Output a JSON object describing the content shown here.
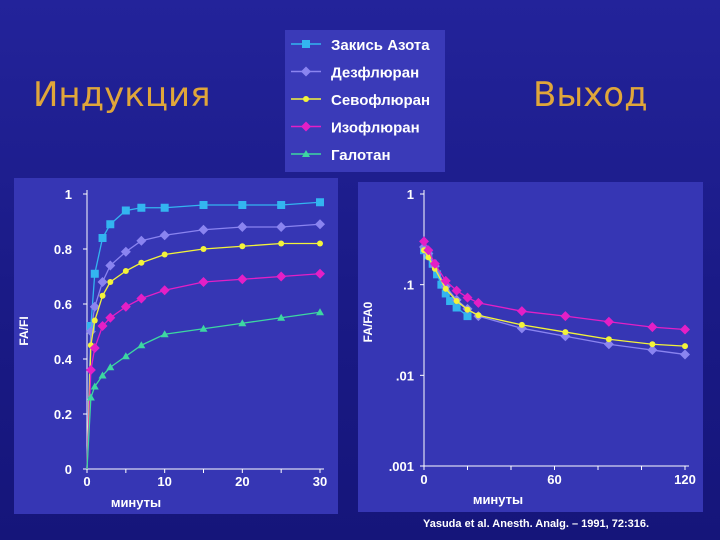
{
  "slide": {
    "title_left": "Индукция",
    "title_right": "Выход",
    "citation": "Yasuda et al. Anesth. Analg. – 1991, 72:316.",
    "heading_color": "#e0a63a",
    "background_color": "#1f1f92"
  },
  "legend": {
    "placement": "top-center",
    "items": [
      {
        "label": "Закись Азота",
        "marker": "square",
        "color": "#33b5f0"
      },
      {
        "label": "Дезфлюран",
        "marker": "diamond",
        "color": "#8a84f0"
      },
      {
        "label": "Севофлюран",
        "marker": "circle",
        "color": "#f3f33a"
      },
      {
        "label": "Изофлюран",
        "marker": "diamond",
        "color": "#e41fc6"
      },
      {
        "label": "Галотан",
        "marker": "triangle",
        "color": "#3dd7a1"
      }
    ]
  },
  "chart_data": [
    {
      "type": "line",
      "panel": "Индукция",
      "xlabel": "минуты",
      "ylabel": "FA/FI",
      "xlim": [
        0,
        30
      ],
      "ylim": [
        0,
        1
      ],
      "xticks": [
        "0",
        "10",
        "20",
        "30"
      ],
      "yticks": [
        "0",
        "0.2",
        "0.4",
        "0.6",
        "0.8",
        "1"
      ],
      "grid": false,
      "series": [
        {
          "name": "Закись Азота",
          "x": [
            0,
            0.5,
            1,
            2,
            3,
            5,
            7,
            10,
            15,
            20,
            25,
            30
          ],
          "y": [
            0,
            0.52,
            0.71,
            0.84,
            0.89,
            0.94,
            0.95,
            0.95,
            0.96,
            0.96,
            0.96,
            0.97
          ]
        },
        {
          "name": "Дезфлюран",
          "x": [
            0,
            0.5,
            1,
            2,
            3,
            5,
            7,
            10,
            15,
            20,
            25,
            30
          ],
          "y": [
            0,
            0.5,
            0.59,
            0.68,
            0.74,
            0.79,
            0.83,
            0.85,
            0.87,
            0.88,
            0.88,
            0.89
          ]
        },
        {
          "name": "Севофлюран",
          "x": [
            0,
            0.5,
            1,
            2,
            3,
            5,
            7,
            10,
            15,
            20,
            25,
            30
          ],
          "y": [
            0,
            0.45,
            0.54,
            0.63,
            0.68,
            0.72,
            0.75,
            0.78,
            0.8,
            0.81,
            0.82,
            0.82
          ]
        },
        {
          "name": "Изофлюран",
          "x": [
            0,
            0.5,
            1,
            2,
            3,
            5,
            7,
            10,
            15,
            20,
            25,
            30
          ],
          "y": [
            0,
            0.36,
            0.44,
            0.52,
            0.55,
            0.59,
            0.62,
            0.65,
            0.68,
            0.69,
            0.7,
            0.71
          ]
        },
        {
          "name": "Галотан",
          "x": [
            0,
            0.5,
            1,
            2,
            3,
            5,
            7,
            10,
            15,
            20,
            25,
            30
          ],
          "y": [
            0,
            0.26,
            0.3,
            0.34,
            0.37,
            0.41,
            0.45,
            0.49,
            0.51,
            0.53,
            0.55,
            0.57
          ]
        }
      ]
    },
    {
      "type": "line",
      "panel": "Выход",
      "xlabel": "минуты",
      "ylabel": "FA/FA0",
      "xlim": [
        0,
        120
      ],
      "ylim": [
        0.001,
        1
      ],
      "yscale": "log",
      "xticks": [
        "0",
        "60",
        "120"
      ],
      "yticks": [
        ".001",
        ".01",
        ".1",
        "1"
      ],
      "grid": false,
      "series": [
        {
          "name": "Закись Азота",
          "x": [
            0,
            2,
            4,
            6,
            8,
            10,
            12,
            15,
            20
          ],
          "y": [
            0.24,
            0.21,
            0.17,
            0.13,
            0.1,
            0.08,
            0.066,
            0.056,
            0.045
          ]
        },
        {
          "name": "Дезфлюран",
          "x": [
            0,
            2,
            5,
            10,
            15,
            20,
            25,
            45,
            65,
            85,
            105,
            120
          ],
          "y": [
            0.26,
            0.22,
            0.16,
            0.095,
            0.068,
            0.054,
            0.045,
            0.033,
            0.027,
            0.022,
            0.019,
            0.017
          ]
        },
        {
          "name": "Севофлюран",
          "x": [
            0,
            2,
            5,
            10,
            15,
            20,
            25,
            45,
            65,
            85,
            105,
            120
          ],
          "y": [
            0.24,
            0.2,
            0.15,
            0.09,
            0.066,
            0.053,
            0.046,
            0.036,
            0.03,
            0.025,
            0.022,
            0.021
          ]
        },
        {
          "name": "Изофлюран",
          "x": [
            0,
            2,
            5,
            10,
            15,
            20,
            25,
            45,
            65,
            85,
            105,
            120
          ],
          "y": [
            0.3,
            0.24,
            0.17,
            0.11,
            0.086,
            0.072,
            0.063,
            0.051,
            0.045,
            0.039,
            0.034,
            0.032
          ]
        }
      ]
    }
  ]
}
